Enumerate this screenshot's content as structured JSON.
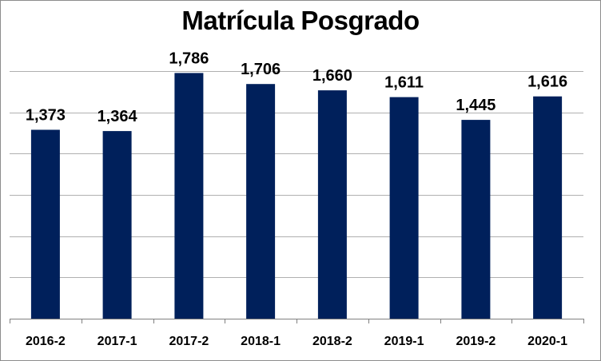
{
  "chart_data": {
    "type": "bar",
    "title": "Matrícula Posgrado",
    "categories": [
      "2016-2",
      "2017-1",
      "2017-2",
      "2018-1",
      "2018-2",
      "2019-1",
      "2019-2",
      "2020-1"
    ],
    "values": [
      1373,
      1364,
      1786,
      1706,
      1660,
      1611,
      1445,
      1616
    ],
    "data_labels": [
      "1,373",
      "1,364",
      "1,786",
      "1,706",
      "1,660",
      "1,611",
      "1,445",
      "1,616"
    ],
    "xlabel": "",
    "ylabel": "",
    "ylim": [
      0,
      1800
    ],
    "y_tick_labels_shown": false,
    "grid": true,
    "legend": "none",
    "bar_color": "#00205b"
  }
}
